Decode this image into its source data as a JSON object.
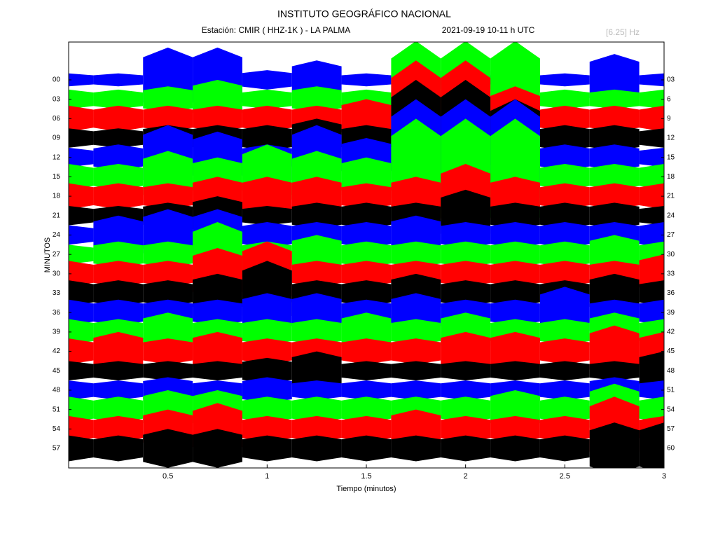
{
  "chart_data": {
    "type": "helicorder",
    "title": "INSTITUTO GEOGRÁFICO NACIONAL",
    "station": "Estación:  CMIR ( HHZ-1K ) - LA PALMA",
    "date": "2021-09-19  10-11 h UTC",
    "filter": "[6.25] Hz",
    "x_label": "Tiempo (minutos)",
    "y_label": "MINUTOS",
    "xlim": [
      0,
      3
    ],
    "xticks": [
      0.5,
      1,
      1.5,
      2,
      2.5,
      3
    ],
    "ylim": [
      -5.85,
      60.03
    ],
    "yticks": [
      {
        "value": 0,
        "label": "00"
      },
      {
        "value": 3,
        "label": "03"
      },
      {
        "value": 6,
        "label": "06"
      },
      {
        "value": 9,
        "label": "09"
      },
      {
        "value": 12,
        "label": "12"
      },
      {
        "value": 15,
        "label": "15"
      },
      {
        "value": 18,
        "label": "18"
      },
      {
        "value": 21,
        "label": "21"
      },
      {
        "value": 24,
        "label": "24"
      },
      {
        "value": 27,
        "label": "27"
      },
      {
        "value": 30,
        "label": "30"
      },
      {
        "value": 33,
        "label": "33"
      },
      {
        "value": 36,
        "label": "36"
      },
      {
        "value": 39,
        "label": "39"
      },
      {
        "value": 42,
        "label": "42"
      },
      {
        "value": 45,
        "label": "45"
      },
      {
        "value": 48,
        "label": "48"
      },
      {
        "value": 51,
        "label": "51"
      },
      {
        "value": 54,
        "label": "54"
      },
      {
        "value": 57,
        "label": "57"
      }
    ],
    "y2lim": [
      -2.85,
      63.03
    ],
    "y2ticks": [
      {
        "value": 3,
        "label": "03"
      },
      6,
      9,
      12,
      15,
      18,
      21,
      24,
      27,
      30,
      33,
      36,
      39,
      42,
      45,
      48,
      51,
      54,
      57,
      60
    ],
    "x": [
      0,
      0.25,
      0.5,
      0.75,
      1,
      1.25,
      1.5,
      1.75,
      2,
      2.25,
      2.5,
      2.75,
      3
    ],
    "series": [
      {
        "color": "#0000ff",
        "values": [
          1,
          1,
          5,
          5,
          1.5,
          3,
          1,
          1,
          2,
          1,
          1,
          4,
          1
        ]
      },
      {
        "color": "#00ff00",
        "values": [
          1.5,
          1.5,
          2,
          3,
          1.5,
          2,
          1.5,
          9,
          9,
          9,
          1.5,
          1.5,
          1.5
        ]
      },
      {
        "color": "#ff0000",
        "values": [
          2,
          2,
          2,
          2,
          2,
          2,
          3,
          9,
          9,
          5,
          2,
          2,
          2
        ]
      },
      {
        "color": "#000000",
        "values": [
          1.5,
          1.5,
          2,
          2,
          2,
          3,
          2,
          9,
          9,
          6,
          2,
          2,
          1.5
        ]
      },
      {
        "color": "#0000ff",
        "values": [
          1.5,
          2,
          5,
          4,
          2,
          5,
          3,
          9,
          9,
          9,
          2,
          2,
          1.5
        ]
      },
      {
        "color": "#00ff00",
        "values": [
          2,
          2,
          4,
          3,
          5,
          4,
          3,
          9,
          9,
          9,
          2,
          2,
          2
        ]
      },
      {
        "color": "#ff0000",
        "values": [
          2,
          2,
          2,
          3,
          3,
          3,
          2,
          3,
          5,
          3,
          2,
          2,
          2
        ]
      },
      {
        "color": "#000000",
        "values": [
          1.5,
          1.5,
          2,
          3,
          1.5,
          2,
          2,
          2,
          4,
          2,
          2,
          2,
          1.5
        ]
      },
      {
        "color": "#0000ff",
        "values": [
          1.5,
          3,
          4,
          4,
          2,
          2,
          2,
          3,
          2,
          2,
          2,
          2,
          2
        ]
      },
      {
        "color": "#00ff00",
        "values": [
          1.5,
          2,
          2,
          5,
          2,
          3,
          2,
          2,
          2,
          2,
          2,
          3,
          2
        ]
      },
      {
        "color": "#ff0000",
        "values": [
          2,
          2,
          2,
          4,
          5,
          2,
          2,
          2,
          2,
          2,
          2,
          2,
          3
        ]
      },
      {
        "color": "#000000",
        "values": [
          2,
          2,
          2,
          3,
          5,
          2,
          2,
          3,
          2,
          2,
          2,
          3,
          2
        ]
      },
      {
        "color": "#0000ff",
        "values": [
          2,
          2,
          2,
          2,
          3,
          3,
          2,
          3,
          2,
          2,
          4,
          2,
          2
        ]
      },
      {
        "color": "#00ff00",
        "values": [
          2,
          2,
          3,
          2,
          2,
          2,
          3,
          2,
          3,
          2,
          2,
          3,
          2
        ]
      },
      {
        "color": "#ff0000",
        "values": [
          2,
          3,
          2,
          3,
          2,
          2,
          2,
          2,
          3,
          3,
          2,
          4,
          3
        ]
      },
      {
        "color": "#000000",
        "values": [
          1.5,
          1.5,
          1.5,
          1.5,
          2,
          3,
          1.5,
          1.5,
          1.5,
          1.5,
          1.5,
          1.5,
          3
        ]
      },
      {
        "color": "#0000ff",
        "values": [
          1.5,
          1.5,
          2,
          1.5,
          2,
          1.5,
          1.5,
          1.5,
          1.5,
          1.5,
          1.5,
          2,
          1.5
        ]
      },
      {
        "color": "#00ff00",
        "values": [
          2,
          2,
          3,
          3,
          2,
          2,
          2,
          2,
          2,
          3,
          2,
          4,
          2
        ]
      },
      {
        "color": "#ff0000",
        "values": [
          2,
          2,
          3,
          4,
          2,
          2,
          2,
          3,
          2,
          2,
          2,
          5,
          2
        ]
      },
      {
        "color": "#000000",
        "values": [
          2,
          2,
          3,
          3,
          2,
          2,
          2,
          2,
          2,
          2,
          2,
          4,
          4
        ]
      }
    ]
  }
}
